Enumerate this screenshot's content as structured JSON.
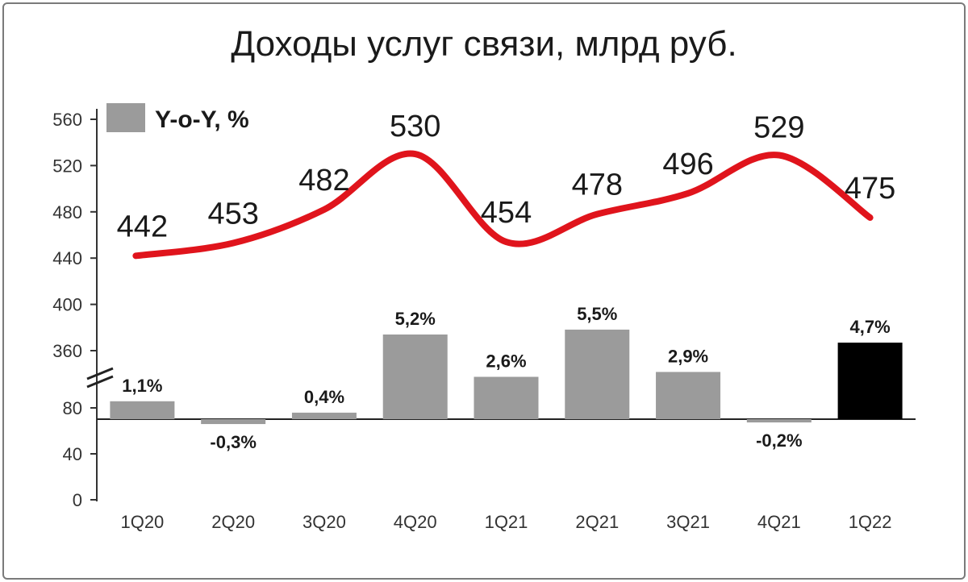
{
  "chart_data": {
    "type": "line+bar",
    "title": "Доходы услуг связи, млрд руб.",
    "categories": [
      "1Q20",
      "2Q20",
      "3Q20",
      "4Q20",
      "1Q21",
      "2Q21",
      "3Q21",
      "4Q21",
      "1Q22"
    ],
    "line_series": {
      "values": [
        442,
        453,
        482,
        530,
        454,
        478,
        496,
        529,
        475
      ],
      "labels": [
        "442",
        "453",
        "482",
        "530",
        "454",
        "478",
        "496",
        "529",
        "475"
      ],
      "color": "#e0141c"
    },
    "bar_series": {
      "name": "Y-o-Y, %",
      "values": [
        1.1,
        -0.3,
        0.4,
        5.2,
        2.6,
        5.5,
        2.9,
        -0.2,
        4.7
      ],
      "labels": [
        "1,1%",
        "-0,3%",
        "0,4%",
        "5,2%",
        "2,6%",
        "5,5%",
        "2,9%",
        "-0,2%",
        "4,7%"
      ],
      "color": "#9b9b9b",
      "highlight_color": "#000000",
      "highlight_index": 8
    },
    "y_axis": {
      "upper_segment": {
        "range": [
          360,
          560
        ],
        "ticks": [
          "360",
          "400",
          "440",
          "480",
          "520",
          "560"
        ]
      },
      "lower_segment": {
        "range": [
          0,
          80
        ],
        "ticks": [
          "0",
          "40",
          "80"
        ]
      },
      "axis_break": true
    },
    "legend": {
      "position": "top-left",
      "label": "Y-o-Y, %"
    },
    "grid": false
  }
}
